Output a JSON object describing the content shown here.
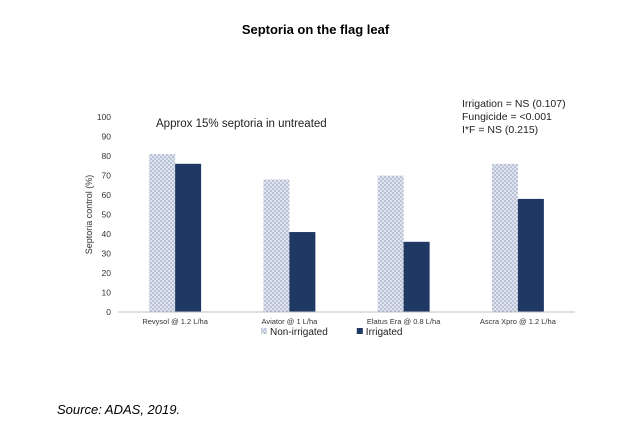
{
  "title": "Septoria on the flag leaf",
  "source": "Source: ADAS, 2019.",
  "chart_data": {
    "type": "bar",
    "ylabel": "Septoria control (%)",
    "xlabel": "",
    "ylim": [
      0,
      100
    ],
    "yticks": [
      0,
      10,
      20,
      30,
      40,
      50,
      60,
      70,
      80,
      90,
      100
    ],
    "categories": [
      "Revysol @ 1.2 L/ha",
      "Aviator @ 1 L/ha",
      "Elatus Era @ 0.8 L/ha",
      "Ascra Xpro @ 1.2 L/ha"
    ],
    "series": [
      {
        "name": "Non-irrigated",
        "values": [
          81,
          68,
          70,
          76
        ],
        "color": "#c9d1e3",
        "pattern": "dotted"
      },
      {
        "name": "Irrigated",
        "values": [
          76,
          41,
          36,
          58
        ],
        "color": "#1f3864"
      }
    ],
    "legend_position": "bottom",
    "annotation": "Approx 15% septoria in untreated",
    "stats": [
      "Irrigation = NS (0.107)",
      "Fungicide = <0.001",
      "I*F = NS (0.215)"
    ],
    "grid": false
  }
}
